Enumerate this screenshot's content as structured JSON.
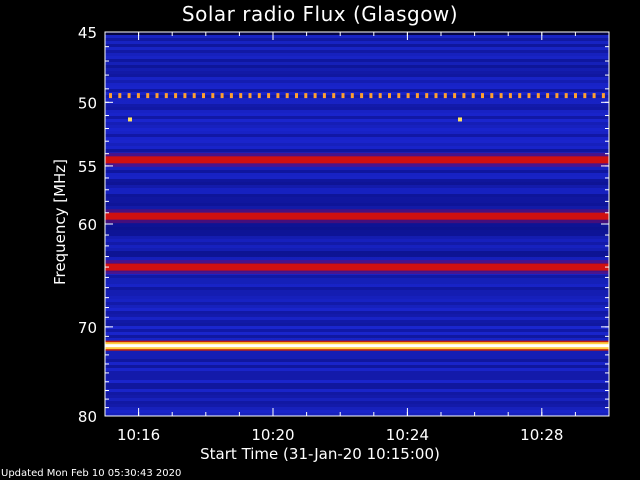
{
  "title": "Solar radio Flux (Glasgow)",
  "footer": "Updated Mon Feb 10 05:30:43 2020",
  "chart_data": {
    "type": "heatmap",
    "title": "Solar radio Flux (Glasgow)",
    "xlabel": "Start Time (31-Jan-20 10:15:00)",
    "ylabel": "Frequency [MHz]",
    "x_unit": "time (UT)",
    "x_range": [
      "10:15",
      "10:30"
    ],
    "x_ticks": [
      "10:16",
      "10:20",
      "10:24",
      "10:28"
    ],
    "y_range": [
      45,
      80
    ],
    "y_scale": "log",
    "y_ticks": [
      45,
      50,
      55,
      60,
      70,
      80
    ],
    "colormap": "blue-red-yellow-white",
    "bands": [
      {
        "freq_mhz": 49.5,
        "intensity": "pulsed (orange dots)"
      },
      {
        "freq_mhz": 54.5,
        "intensity": "high"
      },
      {
        "freq_mhz": 59.3,
        "intensity": "high"
      },
      {
        "freq_mhz": 64.0,
        "intensity": "high"
      },
      {
        "freq_mhz": 72.0,
        "intensity": "saturated"
      }
    ]
  }
}
